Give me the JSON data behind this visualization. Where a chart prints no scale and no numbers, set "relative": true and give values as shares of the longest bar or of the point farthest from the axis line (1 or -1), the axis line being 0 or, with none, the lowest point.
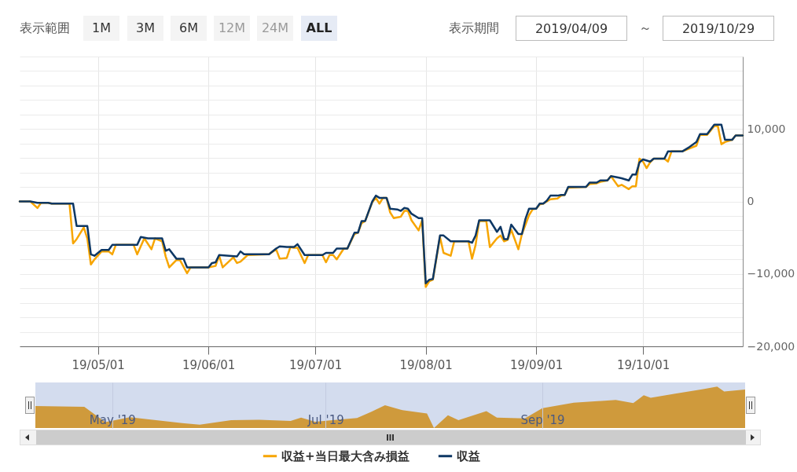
{
  "chart_data": [
    {
      "type": "line",
      "annotations": [
        "表示範囲",
        "1M",
        "3M",
        "6M",
        "12M",
        "24M",
        "ALL",
        "表示期間",
        "2019/04/09",
        "～",
        "2019/10/29"
      ],
      "xlim": [
        "2019-04-09",
        "2019-10-29"
      ],
      "xticks": [
        {
          "value": "2019-05-01",
          "label": "19/05/01"
        },
        {
          "value": "2019-06-01",
          "label": "19/06/01"
        },
        {
          "value": "2019-07-01",
          "label": "19/07/01"
        },
        {
          "value": "2019-08-01",
          "label": "19/08/01"
        },
        {
          "value": "2019-09-01",
          "label": "19/09/01"
        },
        {
          "value": "2019-10-01",
          "label": "19/10/01"
        }
      ],
      "ylim": [
        -20000,
        20000
      ],
      "yticks": [
        {
          "value": -20000,
          "label": "−20,000"
        },
        {
          "value": -18000,
          "label": null
        },
        {
          "value": -16000,
          "label": null
        },
        {
          "value": -14000,
          "label": null
        },
        {
          "value": -12000,
          "label": null
        },
        {
          "value": -10000,
          "label": "−10,000"
        },
        {
          "value": -8000,
          "label": null
        },
        {
          "value": -6000,
          "label": null
        },
        {
          "value": -4000,
          "label": null
        },
        {
          "value": -2000,
          "label": null
        },
        0,
        {
          "value": 2000,
          "label": null
        },
        {
          "value": 4000,
          "label": null
        },
        {
          "value": 6000,
          "label": null
        },
        {
          "value": 8000,
          "label": null
        },
        {
          "value": 10000,
          "label": "10,000"
        },
        {
          "value": 12000,
          "label": null
        },
        {
          "value": 14000,
          "label": null
        },
        {
          "value": 16000,
          "label": null
        },
        {
          "value": 18000,
          "label": null
        },
        {
          "value": 20000,
          "label": null
        }
      ],
      "grid": true,
      "legend": "bottom",
      "marker": "none",
      "line_style": "solid",
      "series": [
        {
          "name": "収益+当日最大含み損益",
          "color": "#f7a500",
          "x": [
            "2019-04-09",
            "2019-04-12",
            "2019-04-14",
            "2019-04-15",
            "2019-04-17",
            "2019-04-18",
            "2019-04-23",
            "2019-04-24",
            "2019-04-25",
            "2019-04-27",
            "2019-04-28",
            "2019-04-29",
            "2019-04-30",
            "2019-05-02",
            "2019-05-04",
            "2019-05-05",
            "2019-05-06",
            "2019-05-11",
            "2019-05-12",
            "2019-05-14",
            "2019-05-16",
            "2019-05-17",
            "2019-05-19",
            "2019-05-20",
            "2019-05-21",
            "2019-05-23",
            "2019-05-24",
            "2019-05-26",
            "2019-05-27",
            "2019-06-01",
            "2019-06-03",
            "2019-06-04",
            "2019-06-05",
            "2019-06-08",
            "2019-06-09",
            "2019-06-10",
            "2019-06-12",
            "2019-06-18",
            "2019-06-20",
            "2019-06-21",
            "2019-06-23",
            "2019-06-24",
            "2019-06-25",
            "2019-06-26",
            "2019-06-28",
            "2019-06-29",
            "2019-07-03",
            "2019-07-04",
            "2019-07-05",
            "2019-07-06",
            "2019-07-07",
            "2019-07-09",
            "2019-07-10",
            "2019-07-12",
            "2019-07-13",
            "2019-07-14",
            "2019-07-15",
            "2019-07-17",
            "2019-07-18",
            "2019-07-19",
            "2019-07-20",
            "2019-07-21",
            "2019-07-22",
            "2019-07-23",
            "2019-07-25",
            "2019-07-26",
            "2019-07-27",
            "2019-07-28",
            "2019-07-30",
            "2019-07-31",
            "2019-08-01",
            "2019-08-02",
            "2019-08-03",
            "2019-08-05",
            "2019-08-06",
            "2019-08-08",
            "2019-08-09",
            "2019-08-13",
            "2019-08-14",
            "2019-08-15",
            "2019-08-16",
            "2019-08-18",
            "2019-08-19",
            "2019-08-21",
            "2019-08-22",
            "2019-08-23",
            "2019-08-24",
            "2019-08-25",
            "2019-08-27",
            "2019-08-28",
            "2019-08-29",
            "2019-08-30",
            "2019-08-31",
            "2019-09-01",
            "2019-09-02",
            "2019-09-03",
            "2019-09-04",
            "2019-09-05",
            "2019-09-07",
            "2019-09-08",
            "2019-09-09",
            "2019-09-10",
            "2019-09-15",
            "2019-09-16",
            "2019-09-18",
            "2019-09-19",
            "2019-09-21",
            "2019-09-22",
            "2019-09-24",
            "2019-09-25",
            "2019-09-27",
            "2019-09-28",
            "2019-09-29",
            "2019-09-30",
            "2019-10-01",
            "2019-10-02",
            "2019-10-03",
            "2019-10-04",
            "2019-10-07",
            "2019-10-08",
            "2019-10-09",
            "2019-10-12",
            "2019-10-14",
            "2019-10-16",
            "2019-10-17",
            "2019-10-19",
            "2019-10-21",
            "2019-10-22",
            "2019-10-23",
            "2019-10-24",
            "2019-10-26",
            "2019-10-27",
            "2019-10-29"
          ],
          "values": [
            0,
            0,
            -900,
            -200,
            -200,
            -300,
            -300,
            -5800,
            -5200,
            -3600,
            -5100,
            -8700,
            -8000,
            -6900,
            -6900,
            -7300,
            -6000,
            -6000,
            -7300,
            -5100,
            -6600,
            -5100,
            -5500,
            -7600,
            -9100,
            -8100,
            -8100,
            -9900,
            -9100,
            -9100,
            -8900,
            -7500,
            -9100,
            -7700,
            -8500,
            -8300,
            -7400,
            -7300,
            -6600,
            -7900,
            -7800,
            -6300,
            -6400,
            -6400,
            -8500,
            -7400,
            -7400,
            -8400,
            -7400,
            -7400,
            -8000,
            -6500,
            -6500,
            -4500,
            -4300,
            -3000,
            -2700,
            -100,
            500,
            -300,
            500,
            500,
            -1500,
            -2300,
            -2100,
            -1300,
            -1300,
            -2600,
            -4000,
            -2600,
            -11800,
            -11000,
            -10800,
            -4900,
            -7100,
            -7500,
            -5500,
            -5500,
            -7900,
            -6000,
            -2700,
            -2700,
            -6300,
            -5100,
            -4700,
            -5500,
            -5300,
            -3900,
            -6600,
            -4500,
            -3200,
            -1900,
            -1100,
            -1000,
            -400,
            -300,
            0,
            300,
            400,
            800,
            900,
            1900,
            2000,
            2400,
            2500,
            2700,
            2900,
            3500,
            2100,
            2300,
            1700,
            2100,
            2100,
            5900,
            5500,
            4600,
            5400,
            5900,
            5900,
            5500,
            6900,
            6900,
            7300,
            7700,
            9200,
            9200,
            10400,
            10400,
            7900,
            8200,
            8500,
            9100,
            9100
          ]
        },
        {
          "name": "収益",
          "color": "#0d3764",
          "x": [
            "2019-04-09",
            "2019-04-12",
            "2019-04-14",
            "2019-04-17",
            "2019-04-18",
            "2019-04-24",
            "2019-04-25",
            "2019-04-28",
            "2019-04-29",
            "2019-04-30",
            "2019-05-02",
            "2019-05-04",
            "2019-05-05",
            "2019-05-12",
            "2019-05-13",
            "2019-05-15",
            "2019-05-19",
            "2019-05-20",
            "2019-05-21",
            "2019-05-23",
            "2019-05-25",
            "2019-05-26",
            "2019-06-01",
            "2019-06-02",
            "2019-06-03",
            "2019-06-04",
            "2019-06-09",
            "2019-06-10",
            "2019-06-11",
            "2019-06-18",
            "2019-06-20",
            "2019-06-21",
            "2019-06-23",
            "2019-06-25",
            "2019-06-26",
            "2019-06-28",
            "2019-07-03",
            "2019-07-04",
            "2019-07-06",
            "2019-07-07",
            "2019-07-10",
            "2019-07-12",
            "2019-07-13",
            "2019-07-14",
            "2019-07-15",
            "2019-07-17",
            "2019-07-18",
            "2019-07-19",
            "2019-07-21",
            "2019-07-22",
            "2019-07-24",
            "2019-07-25",
            "2019-07-26",
            "2019-07-27",
            "2019-07-28",
            "2019-07-30",
            "2019-07-31",
            "2019-08-01",
            "2019-08-02",
            "2019-08-03",
            "2019-08-05",
            "2019-08-06",
            "2019-08-08",
            "2019-08-13",
            "2019-08-14",
            "2019-08-15",
            "2019-08-16",
            "2019-08-19",
            "2019-08-21",
            "2019-08-22",
            "2019-08-23",
            "2019-08-24",
            "2019-08-25",
            "2019-08-27",
            "2019-08-28",
            "2019-08-29",
            "2019-08-30",
            "2019-09-01",
            "2019-09-02",
            "2019-09-03",
            "2019-09-04",
            "2019-09-05",
            "2019-09-07",
            "2019-09-08",
            "2019-09-09",
            "2019-09-10",
            "2019-09-15",
            "2019-09-16",
            "2019-09-18",
            "2019-09-19",
            "2019-09-21",
            "2019-09-22",
            "2019-09-24",
            "2019-09-25",
            "2019-09-27",
            "2019-09-28",
            "2019-09-29",
            "2019-09-30",
            "2019-10-01",
            "2019-10-03",
            "2019-10-04",
            "2019-10-07",
            "2019-10-08",
            "2019-10-12",
            "2019-10-14",
            "2019-10-16",
            "2019-10-17",
            "2019-10-19",
            "2019-10-21",
            "2019-10-23",
            "2019-10-24",
            "2019-10-26",
            "2019-10-27",
            "2019-10-29"
          ],
          "values": [
            0,
            0,
            -200,
            -200,
            -300,
            -300,
            -3400,
            -3400,
            -7300,
            -7500,
            -6700,
            -6700,
            -6000,
            -6000,
            -4900,
            -5100,
            -5100,
            -6800,
            -6600,
            -7900,
            -7900,
            -9100,
            -9100,
            -8500,
            -8400,
            -7400,
            -7600,
            -6900,
            -7300,
            -7300,
            -6500,
            -6200,
            -6300,
            -6300,
            -5900,
            -7400,
            -7400,
            -7100,
            -7100,
            -6500,
            -6500,
            -4300,
            -4300,
            -2700,
            -2700,
            0,
            800,
            500,
            500,
            -1000,
            -1100,
            -1300,
            -900,
            -1000,
            -1700,
            -2300,
            -2300,
            -11300,
            -10800,
            -10700,
            -4700,
            -4700,
            -5500,
            -5500,
            -5700,
            -4700,
            -2600,
            -2600,
            -4200,
            -3500,
            -5200,
            -5200,
            -3200,
            -4500,
            -4500,
            -2400,
            -1000,
            -1000,
            -300,
            -300,
            100,
            800,
            800,
            900,
            900,
            2000,
            2000,
            2600,
            2600,
            2900,
            2900,
            3500,
            3300,
            3200,
            2900,
            3700,
            3700,
            5400,
            5800,
            5500,
            5900,
            5900,
            6900,
            6900,
            7500,
            8200,
            9300,
            9300,
            10600,
            10600,
            8500,
            8500,
            9100,
            9100
          ]
        }
      ]
    },
    {
      "type": "area",
      "relative": true,
      "color": "#cf9a3c",
      "grid": "x",
      "tick_labels": "x",
      "xlim": [
        "2019-04-09",
        "2019-10-29"
      ],
      "xticks": [
        {
          "value": "2019-05-01",
          "label": "May '19"
        },
        {
          "value": "2019-07-01",
          "label": "Jul '19"
        },
        {
          "value": "2019-09-01",
          "label": "Sep '19"
        }
      ],
      "x": [
        "2019-04-09",
        "2019-04-23",
        "2019-04-29",
        "2019-05-06",
        "2019-05-21",
        "2019-05-26",
        "2019-06-04",
        "2019-06-12",
        "2019-06-21",
        "2019-06-24",
        "2019-06-28",
        "2019-07-10",
        "2019-07-14",
        "2019-07-18",
        "2019-07-23",
        "2019-07-30",
        "2019-08-01",
        "2019-08-05",
        "2019-08-08",
        "2019-08-16",
        "2019-08-19",
        "2019-08-27",
        "2019-09-01",
        "2019-09-10",
        "2019-09-22",
        "2019-09-27",
        "2019-09-30",
        "2019-10-02",
        "2019-10-09",
        "2019-10-17",
        "2019-10-21",
        "2019-10-23",
        "2019-10-29"
      ],
      "values": [
        0.53,
        0.51,
        0.14,
        0.26,
        0.12,
        0.08,
        0.19,
        0.2,
        0.17,
        0.25,
        0.15,
        0.24,
        0.39,
        0.55,
        0.43,
        0.35,
        0,
        0.31,
        0.19,
        0.41,
        0.25,
        0.23,
        0.48,
        0.61,
        0.68,
        0.6,
        0.79,
        0.73,
        0.83,
        0.94,
        1,
        0.88,
        0.93
      ]
    }
  ]
}
